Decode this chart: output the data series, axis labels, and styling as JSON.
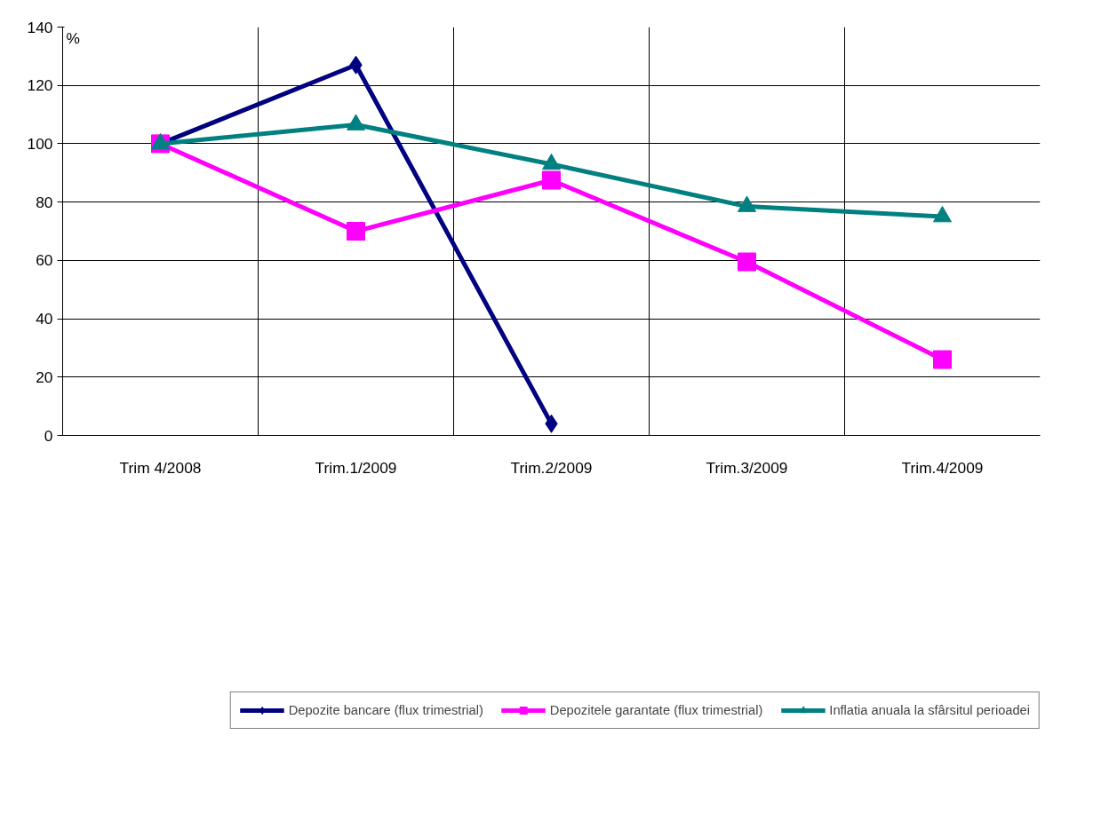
{
  "chart_data": {
    "type": "line",
    "ylabel": "%",
    "categories": [
      "Trim 4/2008",
      "Trim.1/2009",
      "Trim.2/2009",
      "Trim.3/2009",
      "Trim.4/2009"
    ],
    "series": [
      {
        "name": "Depozite bancare (flux trimestrial)",
        "color": "#000080",
        "marker": "diamond",
        "values": [
          100,
          127,
          4,
          null,
          null
        ]
      },
      {
        "name": "Depozitele garantate (flux trimestrial)",
        "color": "#ff00ff",
        "marker": "square",
        "values": [
          100,
          70,
          87.5,
          59.5,
          26
        ]
      },
      {
        "name": "Inflatia anuala la sfârsitul perioadei",
        "color": "#008080",
        "marker": "triangle",
        "values": [
          100,
          106.5,
          93,
          78.5,
          75
        ]
      }
    ],
    "ylim": [
      0,
      140
    ],
    "yticks": [
      0,
      20,
      40,
      60,
      80,
      100,
      120,
      140
    ],
    "grid": true,
    "legend": "bottom",
    "line_style": "solid"
  }
}
